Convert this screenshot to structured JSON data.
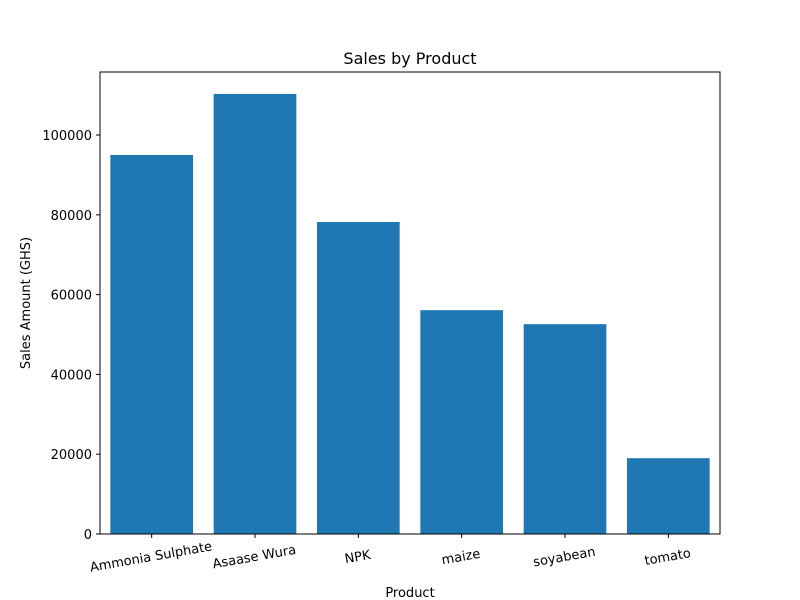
{
  "chart_data": {
    "type": "bar",
    "title": "Sales by Product",
    "xlabel": "Product",
    "ylabel": "Sales Amount (GHS)",
    "categories": [
      "Ammonia Sulphate",
      "Asaase Wura",
      "NPK",
      "maize",
      "soyabean",
      "tomato"
    ],
    "values": [
      95000,
      110300,
      78200,
      56100,
      52600,
      19000
    ],
    "ylim": [
      0,
      115800
    ],
    "yticks": [
      0,
      20000,
      40000,
      60000,
      80000,
      100000
    ],
    "ytick_labels": [
      "0",
      "20000",
      "40000",
      "60000",
      "80000",
      "100000"
    ],
    "bar_color": "#1f77b4",
    "grid": false,
    "xtick_rotation_deg": -10
  }
}
